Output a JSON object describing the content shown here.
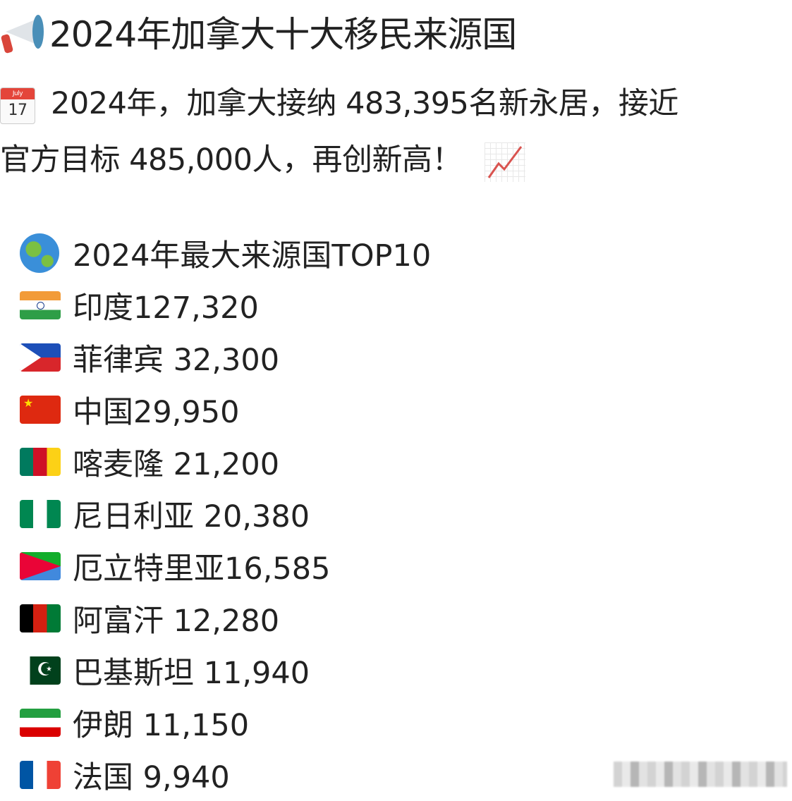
{
  "title": {
    "icon": "megaphone-icon",
    "text": "2024年加拿大十大移民来源国"
  },
  "intro": {
    "calendar_icon": {
      "month": "July",
      "day": "17"
    },
    "line1": "2024年，加拿大接纳 483,395名新永居，接近",
    "line2": "官方目标 485,000人，再创新高！",
    "trend_icon": "chart-increasing-icon"
  },
  "list": {
    "heading_icon": "globe-icon",
    "heading": "2024年最大来源国TOP10",
    "items": [
      {
        "flag": "india",
        "label": "印度127,320"
      },
      {
        "flag": "philippines",
        "label": "菲律宾 32,300"
      },
      {
        "flag": "china",
        "label": "中国29,950"
      },
      {
        "flag": "cameroon",
        "label": "喀麦隆 21,200"
      },
      {
        "flag": "nigeria",
        "label": "尼日利亚 20,380"
      },
      {
        "flag": "eritrea",
        "label": "厄立特里亚16,585"
      },
      {
        "flag": "afghanistan",
        "label": "阿富汗 12,280"
      },
      {
        "flag": "pakistan",
        "label": "巴基斯坦 11,940"
      },
      {
        "flag": "iran",
        "label": "伊朗 11,150"
      },
      {
        "flag": "france",
        "label": "法国 9,940"
      }
    ]
  }
}
